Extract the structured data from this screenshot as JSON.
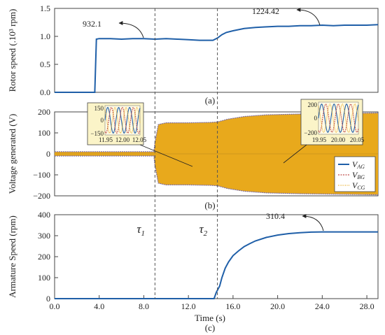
{
  "chart_data": [
    {
      "id": "a",
      "type": "line",
      "panel_label": "(a)",
      "ylabel": "Rotor speed (.10³ rpm)",
      "xlim": [
        0,
        29
      ],
      "ylim": [
        0,
        1.5
      ],
      "yticks": [
        "0.0",
        "0.5",
        "1.0",
        "1.5"
      ],
      "series": [
        {
          "color": "#1f5fa8",
          "x": [
            0,
            2.0,
            3.6,
            3.75,
            4.0,
            5,
            6,
            7,
            8,
            9,
            10,
            11,
            12,
            13,
            13.6,
            14.2,
            14.6,
            15.0,
            15.4,
            16,
            17,
            18,
            19,
            20,
            21,
            22,
            23,
            24,
            25,
            26,
            27,
            28,
            29
          ],
          "y": [
            0.0,
            0.0,
            0.0,
            0.95,
            0.96,
            0.96,
            0.95,
            0.96,
            0.96,
            0.95,
            0.96,
            0.95,
            0.94,
            0.93,
            0.93,
            0.93,
            0.97,
            1.03,
            1.07,
            1.1,
            1.14,
            1.16,
            1.17,
            1.18,
            1.18,
            1.19,
            1.19,
            1.2,
            1.19,
            1.2,
            1.2,
            1.2,
            1.21
          ]
        }
      ],
      "annotations": [
        {
          "text": "932.1"
        },
        {
          "text": "1224.42"
        }
      ]
    },
    {
      "id": "b",
      "type": "area",
      "panel_label": "(b)",
      "ylabel": "Voltage generated (V)",
      "xlim": [
        0,
        29
      ],
      "ylim": [
        -200,
        200
      ],
      "yticks": [
        "−200",
        "−100",
        "0",
        "100",
        "200"
      ],
      "envelope": {
        "color": "#e8a91c",
        "x": [
          0,
          8.9,
          9.0,
          9.3,
          10,
          12,
          14,
          14.6,
          15.5,
          17,
          19,
          22,
          25,
          29
        ],
        "upper": [
          10,
          10,
          55,
          140,
          148,
          148,
          150,
          152,
          165,
          178,
          186,
          190,
          192,
          195
        ],
        "lower": [
          -10,
          -10,
          -55,
          -140,
          -148,
          -148,
          -150,
          -152,
          -165,
          -178,
          -186,
          -190,
          -192,
          -195
        ]
      },
      "legend": [
        "V_AG",
        "V_BG",
        "V_CG"
      ],
      "legend_placement": "bottom-right",
      "insets": [
        {
          "xticks": [
            "11.95",
            "12.00",
            "12.05"
          ],
          "yticks": [
            "150",
            "0",
            "−150"
          ]
        },
        {
          "xticks": [
            "19.95",
            "20.00",
            "20.05"
          ],
          "yticks": [
            "200",
            "0",
            "−200"
          ]
        }
      ]
    },
    {
      "id": "c",
      "type": "line",
      "panel_label": "(c)",
      "ylabel": "Armature Speed (rpm)",
      "xlabel": "Time (s)",
      "xlim": [
        0,
        29
      ],
      "ylim": [
        0,
        400
      ],
      "yticks": [
        "0",
        "100",
        "200",
        "300",
        "400"
      ],
      "xticks": [
        "0.0",
        "4.0",
        "8.0",
        "12.0",
        "16.0",
        "20.0",
        "24.0",
        "28.0"
      ],
      "series": [
        {
          "color": "#1f5fa8",
          "x": [
            0,
            14.3,
            14.5,
            14.8,
            15.0,
            15.3,
            15.6,
            16,
            16.5,
            17,
            17.5,
            18,
            19,
            20,
            21,
            22,
            23,
            24,
            25,
            26,
            27,
            28,
            29
          ],
          "y": [
            0,
            0,
            30,
            60,
            100,
            145,
            175,
            205,
            228,
            248,
            262,
            275,
            292,
            303,
            310,
            314,
            317,
            318,
            318,
            318,
            318,
            318,
            318
          ]
        }
      ],
      "annotations": [
        {
          "text": "310.4"
        }
      ]
    }
  ],
  "markers": [
    {
      "label": "τ",
      "sub": "1",
      "x": 9.0
    },
    {
      "label": "τ",
      "sub": "2",
      "x": 14.6
    }
  ]
}
